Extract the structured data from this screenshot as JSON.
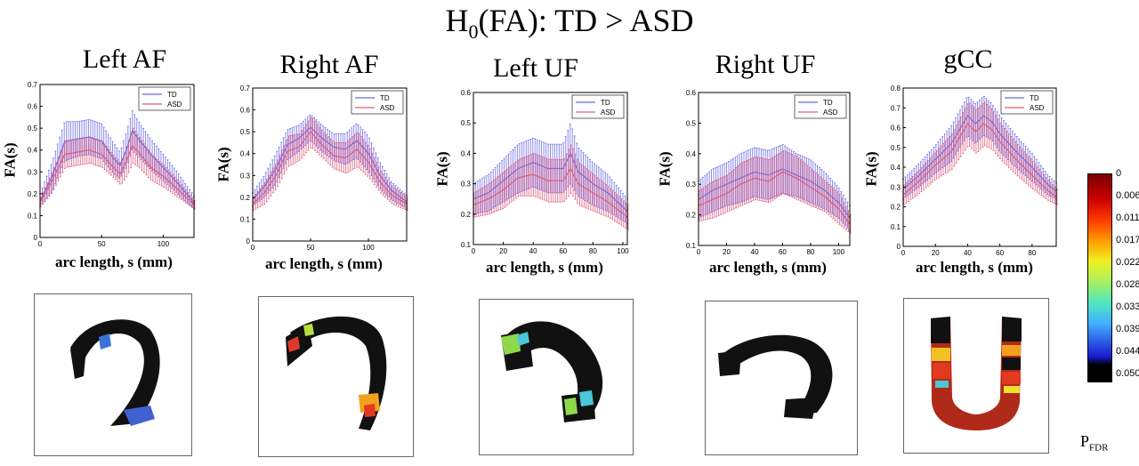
{
  "title": {
    "prefix": "H",
    "sub": "0",
    "rest": "(FA): TD > ASD"
  },
  "colorbar": {
    "ticks": [
      "0",
      "0.006",
      "0.011",
      "0.017",
      "0.022",
      "0.028",
      "0.033",
      "0.039",
      "0.044",
      "0.050"
    ],
    "label_main": "P",
    "label_sub": "FDR"
  },
  "chart_data": [
    {
      "type": "line",
      "title": "Left AF",
      "xlabel": "arc length, s (mm)",
      "ylabel": "FA(s)",
      "xlim": [
        0,
        125
      ],
      "ylim": [
        0,
        0.7
      ],
      "xticks": [
        "0",
        "50",
        "100"
      ],
      "xtick_values": [
        0,
        50,
        100
      ],
      "yticks": [
        "0",
        "0.1",
        "0.2",
        "0.3",
        "0.4",
        "0.5",
        "0.6",
        "0.7"
      ],
      "ytick_values": [
        0,
        0.1,
        0.2,
        0.3,
        0.4,
        0.5,
        0.6,
        0.7
      ],
      "legend": [
        "TD",
        "ASD"
      ],
      "legend_position": "top-right",
      "x": [
        0,
        10,
        20,
        30,
        40,
        50,
        60,
        65,
        70,
        75,
        80,
        90,
        100,
        110,
        125
      ],
      "series": [
        {
          "name": "TD",
          "color": "#6a6ae8",
          "values": [
            0.17,
            0.28,
            0.44,
            0.45,
            0.46,
            0.44,
            0.36,
            0.33,
            0.4,
            0.49,
            0.45,
            0.38,
            0.32,
            0.26,
            0.16
          ],
          "error": [
            0.03,
            0.07,
            0.09,
            0.08,
            0.08,
            0.08,
            0.07,
            0.06,
            0.08,
            0.09,
            0.08,
            0.07,
            0.06,
            0.05,
            0.03
          ]
        },
        {
          "name": "ASD",
          "color": "#e05a7a",
          "values": [
            0.16,
            0.26,
            0.38,
            0.39,
            0.4,
            0.38,
            0.32,
            0.29,
            0.35,
            0.42,
            0.39,
            0.32,
            0.28,
            0.23,
            0.15
          ],
          "error": [
            0.02,
            0.05,
            0.06,
            0.06,
            0.06,
            0.06,
            0.05,
            0.05,
            0.07,
            0.08,
            0.07,
            0.06,
            0.05,
            0.04,
            0.02
          ]
        }
      ]
    },
    {
      "type": "line",
      "title": "Right AF",
      "xlabel": "arc length, s (mm)",
      "ylabel": "FA(s)",
      "xlim": [
        0,
        133
      ],
      "ylim": [
        0,
        0.7
      ],
      "xticks": [
        "0",
        "50",
        "100"
      ],
      "xtick_values": [
        0,
        50,
        100
      ],
      "yticks": [
        "0",
        "0.1",
        "0.2",
        "0.3",
        "0.4",
        "0.5",
        "0.6",
        "0.7"
      ],
      "ytick_values": [
        0,
        0.1,
        0.2,
        0.3,
        0.4,
        0.5,
        0.6,
        0.7
      ],
      "legend": [
        "TD",
        "ASD"
      ],
      "legend_position": "top-right",
      "x": [
        0,
        10,
        20,
        30,
        40,
        50,
        60,
        70,
        80,
        90,
        100,
        110,
        120,
        133
      ],
      "series": [
        {
          "name": "TD",
          "color": "#6a6ae8",
          "values": [
            0.19,
            0.25,
            0.33,
            0.44,
            0.47,
            0.52,
            0.47,
            0.43,
            0.42,
            0.46,
            0.4,
            0.3,
            0.23,
            0.18
          ],
          "error": [
            0.03,
            0.05,
            0.07,
            0.07,
            0.06,
            0.06,
            0.06,
            0.06,
            0.07,
            0.08,
            0.08,
            0.06,
            0.04,
            0.03
          ]
        },
        {
          "name": "ASD",
          "color": "#e05a7a",
          "values": [
            0.17,
            0.22,
            0.3,
            0.41,
            0.43,
            0.5,
            0.44,
            0.39,
            0.38,
            0.42,
            0.36,
            0.27,
            0.21,
            0.17
          ],
          "error": [
            0.03,
            0.05,
            0.06,
            0.07,
            0.06,
            0.07,
            0.06,
            0.06,
            0.07,
            0.08,
            0.07,
            0.05,
            0.04,
            0.03
          ]
        }
      ]
    },
    {
      "type": "line",
      "title": "Left UF",
      "xlabel": "arc length, s (mm)",
      "ylabel": "FA(s)",
      "xlim": [
        0,
        103
      ],
      "ylim": [
        0.1,
        0.6
      ],
      "xticks": [
        "0",
        "20",
        "40",
        "60",
        "80",
        "100"
      ],
      "xtick_values": [
        0,
        20,
        40,
        60,
        80,
        100
      ],
      "yticks": [
        "0.1",
        "0.2",
        "0.3",
        "0.4",
        "0.5",
        "0.6"
      ],
      "ytick_values": [
        0.1,
        0.2,
        0.3,
        0.4,
        0.5,
        0.6
      ],
      "legend": [
        "TD",
        "ASD"
      ],
      "legend_position": "top-right",
      "x": [
        0,
        10,
        20,
        30,
        40,
        50,
        60,
        65,
        70,
        80,
        90,
        103
      ],
      "series": [
        {
          "name": "TD",
          "color": "#6a6ae8",
          "values": [
            0.25,
            0.27,
            0.31,
            0.35,
            0.37,
            0.35,
            0.35,
            0.4,
            0.34,
            0.3,
            0.27,
            0.21
          ],
          "error": [
            0.05,
            0.06,
            0.07,
            0.08,
            0.08,
            0.08,
            0.08,
            0.1,
            0.08,
            0.07,
            0.06,
            0.04
          ]
        },
        {
          "name": "ASD",
          "color": "#e05a7a",
          "values": [
            0.23,
            0.25,
            0.28,
            0.32,
            0.33,
            0.31,
            0.31,
            0.35,
            0.3,
            0.27,
            0.24,
            0.19
          ],
          "error": [
            0.04,
            0.05,
            0.06,
            0.06,
            0.07,
            0.07,
            0.07,
            0.08,
            0.07,
            0.06,
            0.05,
            0.04
          ]
        }
      ]
    },
    {
      "type": "line",
      "title": "Right UF",
      "xlabel": "arc length, s (mm)",
      "ylabel": "FA(s)",
      "xlim": [
        0,
        108
      ],
      "ylim": [
        0.1,
        0.6
      ],
      "xticks": [
        "0",
        "20",
        "40",
        "60",
        "80",
        "100"
      ],
      "xtick_values": [
        0,
        20,
        40,
        60,
        80,
        100
      ],
      "yticks": [
        "0.1",
        "0.2",
        "0.3",
        "0.4",
        "0.5",
        "0.6"
      ],
      "ytick_values": [
        0.1,
        0.2,
        0.3,
        0.4,
        0.5,
        0.6
      ],
      "legend": [
        "TD",
        "ASD"
      ],
      "legend_position": "top-right",
      "x": [
        0,
        10,
        20,
        30,
        40,
        50,
        60,
        70,
        80,
        90,
        100,
        108
      ],
      "series": [
        {
          "name": "TD",
          "color": "#6a6ae8",
          "values": [
            0.25,
            0.28,
            0.3,
            0.32,
            0.34,
            0.33,
            0.35,
            0.33,
            0.31,
            0.28,
            0.24,
            0.19
          ],
          "error": [
            0.06,
            0.07,
            0.07,
            0.08,
            0.08,
            0.08,
            0.08,
            0.07,
            0.07,
            0.06,
            0.05,
            0.04
          ]
        },
        {
          "name": "ASD",
          "color": "#e05a7a",
          "values": [
            0.23,
            0.25,
            0.27,
            0.3,
            0.32,
            0.31,
            0.34,
            0.32,
            0.29,
            0.26,
            0.22,
            0.17
          ],
          "error": [
            0.05,
            0.06,
            0.06,
            0.07,
            0.07,
            0.07,
            0.07,
            0.07,
            0.06,
            0.05,
            0.05,
            0.03
          ]
        }
      ]
    },
    {
      "type": "line",
      "title": "gCC",
      "xlabel": "arc length, s (mm)",
      "ylabel": "FA(s)",
      "xlim": [
        0,
        95
      ],
      "ylim": [
        0,
        0.8
      ],
      "xticks": [
        "0",
        "20",
        "40",
        "60",
        "80"
      ],
      "xtick_values": [
        0,
        20,
        40,
        60,
        80
      ],
      "yticks": [
        "0",
        "0.1",
        "0.2",
        "0.3",
        "0.4",
        "0.5",
        "0.6",
        "0.7",
        "0.8"
      ],
      "ytick_values": [
        0,
        0.1,
        0.2,
        0.3,
        0.4,
        0.5,
        0.6,
        0.7,
        0.8
      ],
      "legend": [
        "TD",
        "ASD"
      ],
      "legend_position": "top-right",
      "x": [
        0,
        10,
        20,
        30,
        40,
        45,
        50,
        55,
        60,
        70,
        80,
        90,
        95
      ],
      "series": [
        {
          "name": "TD",
          "color": "#6a6ae8",
          "values": [
            0.29,
            0.36,
            0.44,
            0.52,
            0.66,
            0.62,
            0.66,
            0.63,
            0.57,
            0.48,
            0.4,
            0.31,
            0.28
          ],
          "error": [
            0.05,
            0.06,
            0.07,
            0.09,
            0.1,
            0.1,
            0.1,
            0.09,
            0.09,
            0.08,
            0.07,
            0.05,
            0.04
          ]
        },
        {
          "name": "ASD",
          "color": "#e05a7a",
          "values": [
            0.26,
            0.33,
            0.41,
            0.48,
            0.62,
            0.58,
            0.62,
            0.59,
            0.53,
            0.44,
            0.36,
            0.28,
            0.25
          ],
          "error": [
            0.05,
            0.06,
            0.07,
            0.09,
            0.11,
            0.11,
            0.11,
            0.1,
            0.09,
            0.08,
            0.07,
            0.05,
            0.04
          ]
        }
      ]
    }
  ]
}
